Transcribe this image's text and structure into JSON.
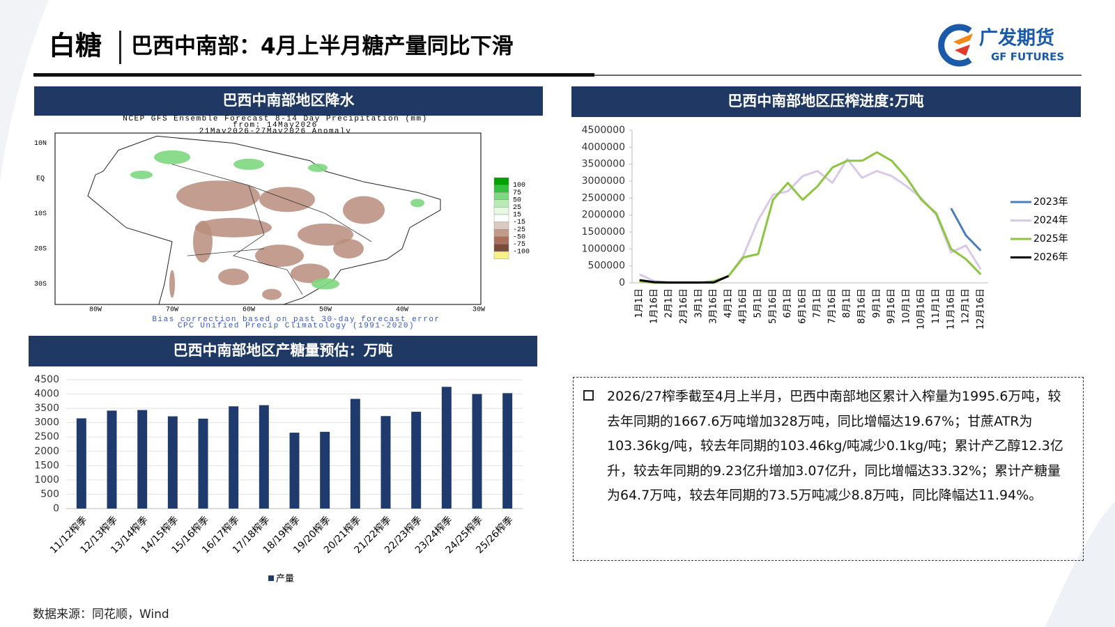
{
  "header": {
    "title": "白糖",
    "subtitle": "巴西中南部：4月上半月糖产量同比下滑",
    "logo_cn": "广发期货",
    "logo_en": "GF FUTURES"
  },
  "map": {
    "title": "巴西中南部地区降水",
    "lines": [
      "NCEP GFS Ensemble Forecast 8-14 Day Precipitation (mm)",
      "from: 14May2026",
      "21May2026-27May2026 Anomaly"
    ],
    "xticks": [
      "80W",
      "70W",
      "60W",
      "50W",
      "40W",
      "30W"
    ],
    "yticks": [
      "10N",
      "EQ",
      "10S",
      "20S",
      "30S"
    ],
    "legend_values": [
      100,
      75,
      50,
      25,
      15,
      -15,
      -25,
      -50,
      -75,
      -100
    ],
    "legend_colors": [
      "#00a000",
      "#33c03a",
      "#7dd87f",
      "#b7ecb4",
      "#e6f7e2",
      "#ffffff",
      "#dccac0",
      "#c49a88",
      "#a8705c",
      "#7a4a3a",
      "#f8f088"
    ],
    "footer": [
      "Bias correction based on past 30-day forecast error",
      "CPC Unified Precip Climatology (1991-2020)"
    ]
  },
  "chart_data": [
    {
      "type": "line",
      "title": "巴西中南部地区压榨进度:万吨",
      "categories": [
        "1月1日",
        "1月16日",
        "2月1日",
        "2月16日",
        "3月1日",
        "3月16日",
        "4月1日",
        "4月16日",
        "5月1日",
        "5月16日",
        "6月1日",
        "6月16日",
        "7月1日",
        "7月16日",
        "8月1日",
        "8月16日",
        "9月1日",
        "9月16日",
        "10月1日",
        "10月16日",
        "11月1日",
        "11月16日",
        "12月1日",
        "12月16日"
      ],
      "ylim": [
        0,
        4500000
      ],
      "yticks": [
        0,
        500000,
        1000000,
        1500000,
        2000000,
        2500000,
        3000000,
        3500000,
        4000000,
        4500000
      ],
      "grid": false,
      "legend": "right",
      "series": [
        {
          "name": "2023年",
          "color": "#4a7ebb",
          "values": [
            null,
            null,
            null,
            null,
            null,
            null,
            null,
            null,
            null,
            null,
            null,
            null,
            null,
            null,
            null,
            null,
            null,
            null,
            null,
            null,
            null,
            2200000,
            1400000,
            950000
          ]
        },
        {
          "name": "2024年",
          "color": "#d9c8e8",
          "values": [
            250000,
            50000,
            10000,
            10000,
            10000,
            30000,
            200000,
            800000,
            1850000,
            2600000,
            2700000,
            3150000,
            3300000,
            2950000,
            3650000,
            3100000,
            3300000,
            3150000,
            2850000,
            2500000,
            2000000,
            900000,
            1100000,
            400000
          ]
        },
        {
          "name": "2025年",
          "color": "#8cc63f",
          "values": [
            50000,
            0,
            0,
            0,
            0,
            50000,
            200000,
            750000,
            850000,
            2450000,
            2950000,
            2450000,
            2850000,
            3400000,
            3600000,
            3600000,
            3850000,
            3600000,
            3100000,
            2450000,
            2050000,
            1000000,
            700000,
            250000
          ]
        },
        {
          "name": "2026年",
          "color": "#000000",
          "values": [
            80000,
            20000,
            10000,
            10000,
            10000,
            10000,
            200000,
            null,
            null,
            null,
            null,
            null,
            null,
            null,
            null,
            null,
            null,
            null,
            null,
            null,
            null,
            null,
            null,
            null
          ]
        }
      ]
    },
    {
      "type": "bar",
      "title": "巴西中南部地区产糖量预估：万吨",
      "categories": [
        "11/12榨季",
        "12/13榨季",
        "13/14榨季",
        "14/15榨季",
        "15/16榨季",
        "16/17榨季",
        "17/18榨季",
        "18/19榨季",
        "19/20榨季",
        "20/21榨季",
        "21/22榨季",
        "22/23榨季",
        "23/24榨季",
        "24/25榨季",
        "25/26榨季"
      ],
      "ylim": [
        0,
        4500
      ],
      "yticks": [
        0,
        500,
        1000,
        1500,
        2000,
        2500,
        3000,
        3500,
        4000,
        4500
      ],
      "grid": true,
      "legend": "bottom",
      "series": [
        {
          "name": "产量",
          "color": "#1f3b6e",
          "values": [
            3150,
            3420,
            3440,
            3220,
            3140,
            3570,
            3610,
            2650,
            2680,
            3830,
            3230,
            3380,
            4250,
            4000,
            4030
          ]
        }
      ]
    }
  ],
  "note": "2026/27榨季截至4月上半月，巴西中南部地区累计入榨量为1995.6万吨，较去年同期的1667.6万吨增加328万吨，同比增幅达19.67%；甘蔗ATR为103.36kg/吨，较去年同期的103.46kg/吨减少0.1kg/吨；累计产乙醇12.3亿升，较去年同期的9.23亿升增加3.07亿升，同比增幅达33.32%；累计产糖量为64.7万吨，较去年同期的73.5万吨减少8.8万吨，同比降幅达11.94%。",
  "source": "数据来源：同花顺，Wind"
}
